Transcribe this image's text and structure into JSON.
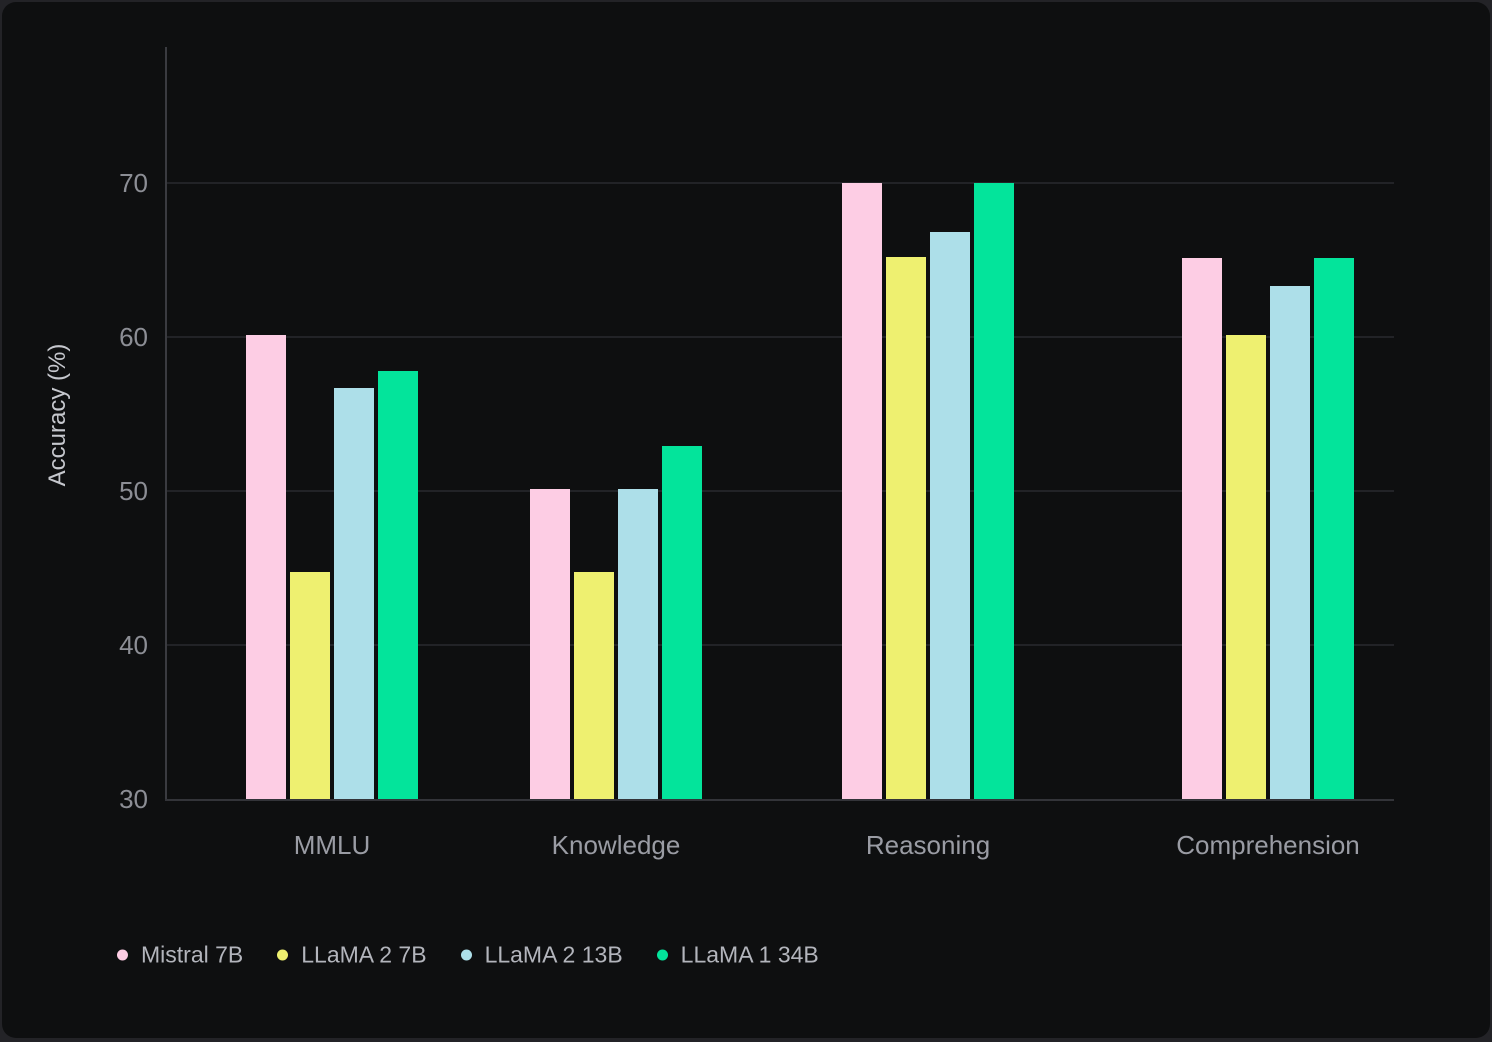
{
  "chart_data": {
    "type": "bar",
    "ylabel": "Accuracy (%)",
    "categories": [
      "MMLU",
      "Knowledge",
      "Reasoning",
      "Comprehension"
    ],
    "series": [
      {
        "name": "Mistral 7B",
        "color": "#fdcde4",
        "values": [
          60.1,
          50.1,
          70.0,
          65.1
        ]
      },
      {
        "name": "LLaMA 2 7B",
        "color": "#eef070",
        "values": [
          44.7,
          44.7,
          65.2,
          60.1
        ]
      },
      {
        "name": "LLaMA 2 13B",
        "color": "#addfe9",
        "values": [
          56.7,
          50.1,
          66.8,
          63.3
        ]
      },
      {
        "name": "LLaMA 1 34B",
        "color": "#03e49b",
        "values": [
          57.8,
          52.9,
          70.0,
          65.1
        ]
      }
    ],
    "ylim": [
      30,
      78.8
    ],
    "yticks": [
      30,
      40,
      50,
      60,
      70
    ],
    "grid": "horizontal",
    "legend_position": "bottom-left",
    "background_color": "#0e0f10"
  }
}
